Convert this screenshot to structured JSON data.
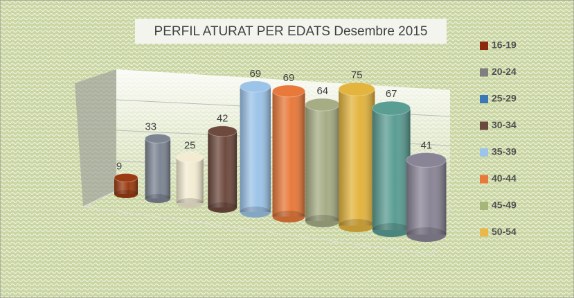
{
  "chart_data": {
    "type": "bar",
    "title": "PERFIL ATURAT PER EDATS Desembre 2015",
    "categories": [
      "16-19",
      "20-24",
      "25-29",
      "30-34",
      "35-39",
      "40-44",
      "45-49",
      "50-54",
      null,
      null
    ],
    "values": [
      9,
      33,
      25,
      42,
      69,
      69,
      64,
      75,
      67,
      41
    ],
    "colors": [
      "#9a3b12",
      "#7d8593",
      "#f3ecd2",
      "#6e4a3e",
      "#9cc3e8",
      "#e8793a",
      "#a6ad85",
      "#e3b43e",
      "#5a9d93",
      "#8a8596"
    ],
    "legend_colors": [
      "#8b2a0c",
      "#7f7f7f",
      "#3a78b8",
      "#6a4a3e",
      "#9cc3e8",
      "#e8793a",
      "#a6b57a",
      "#e8b84a"
    ],
    "ylim": [
      0,
      80
    ]
  }
}
